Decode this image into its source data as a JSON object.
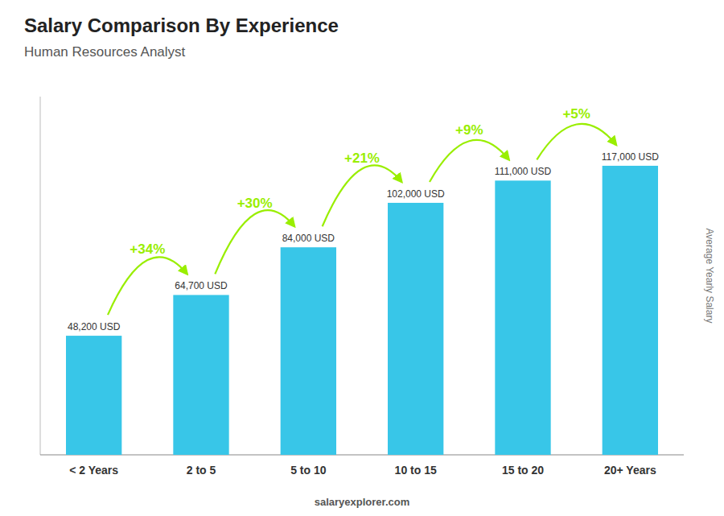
{
  "chart_data": {
    "type": "bar",
    "title": "Salary Comparison By Experience",
    "subtitle": "Human Resources Analyst",
    "y_label": "Average Yearly Salary",
    "categories": [
      "< 2 Years",
      "2 to 5",
      "5 to 10",
      "10 to 15",
      "15 to 20",
      "20+ Years"
    ],
    "values": [
      48200,
      64700,
      84000,
      102000,
      111000,
      117000
    ],
    "value_labels": [
      "48,200 USD",
      "64,700 USD",
      "84,000 USD",
      "102,000 USD",
      "111,000 USD",
      "117,000 USD"
    ],
    "data_labels": true,
    "annotations": [
      {
        "text": "+34%",
        "color": "#99ee00"
      },
      {
        "text": "+30%",
        "color": "#99ee00"
      },
      {
        "text": "+21%",
        "color": "#99ee00"
      },
      {
        "text": "+9%",
        "color": "#99ee00"
      },
      {
        "text": "+5%",
        "color": "#99ee00"
      }
    ],
    "footer": "salaryexplorer.com",
    "color": "#38c6e8",
    "ylim": [
      0,
      145000
    ],
    "tick_labels": "x",
    "grid": false
  }
}
